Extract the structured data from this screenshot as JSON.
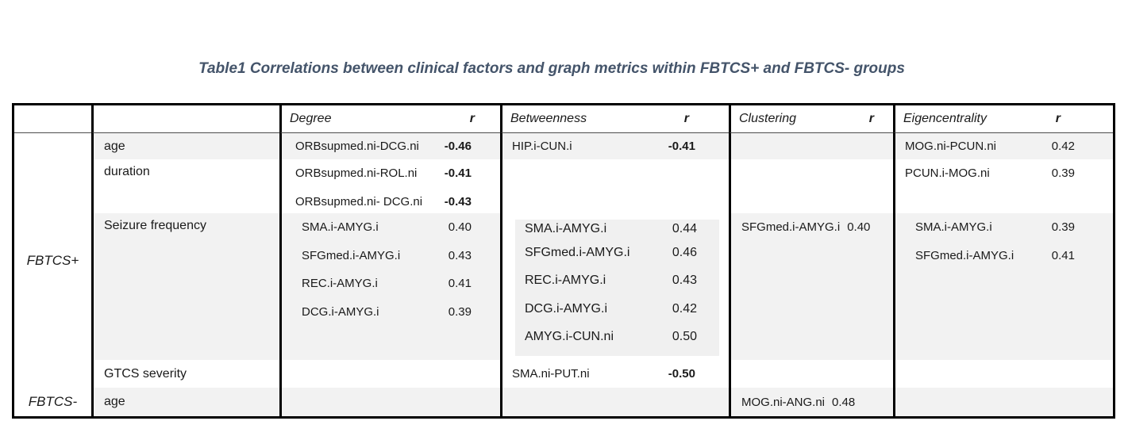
{
  "title": "Table1 Correlations between clinical factors and graph metrics within FBTCS+ and FBTCS- groups",
  "colors": {
    "title_accent": "#44546A",
    "row_shading": "#f2f2f2",
    "border": "#000000"
  },
  "header": {
    "metrics": [
      {
        "label": "Degree",
        "r": "r"
      },
      {
        "label": "Betweenness",
        "r": "r"
      },
      {
        "label": "Clustering",
        "r": "r"
      },
      {
        "label": "Eigencentrality",
        "r": "r"
      }
    ]
  },
  "groups": [
    {
      "label": "FBTCS+"
    },
    {
      "label": "FBTCS-"
    }
  ],
  "rows": [
    {
      "group": "FBTCS+",
      "factor": "age",
      "degree": [
        {
          "pair": "ORBsupmed.ni-DCG.ni",
          "r": "-0.46"
        }
      ],
      "betweenness": [
        {
          "pair": "HIP.i-CUN.i",
          "r": "-0.41"
        }
      ],
      "clustering": [],
      "eigencentrality": [
        {
          "pair": "MOG.ni-PCUN.ni",
          "r": "0.42"
        }
      ]
    },
    {
      "group": "FBTCS+",
      "factor": "duration",
      "degree": [
        {
          "pair": "ORBsupmed.ni-ROL.ni",
          "r": "-0.41"
        },
        {
          "pair": "ORBsupmed.ni- DCG.ni",
          "r": "-0.43"
        }
      ],
      "betweenness": [],
      "clustering": [],
      "eigencentrality": [
        {
          "pair": "PCUN.i-MOG.ni",
          "r": "0.39"
        }
      ]
    },
    {
      "group": "FBTCS+",
      "factor": "Seizure frequency",
      "degree": [
        {
          "pair": "SMA.i-AMYG.i",
          "r": "0.40"
        },
        {
          "pair": "SFGmed.i-AMYG.i",
          "r": "0.43"
        },
        {
          "pair": "REC.i-AMYG.i",
          "r": "0.41"
        },
        {
          "pair": "DCG.i-AMYG.i",
          "r": "0.39"
        }
      ],
      "betweenness": [
        {
          "pair": "SMA.i-AMYG.i",
          "r": "0.44"
        },
        {
          "pair": "SFGmed.i-AMYG.i",
          "r": "0.46"
        },
        {
          "pair": "REC.i-AMYG.i",
          "r": "0.43"
        },
        {
          "pair": "DCG.i-AMYG.i",
          "r": "0.42"
        },
        {
          "pair": "AMYG.i-CUN.ni",
          "r": "0.50"
        }
      ],
      "clustering": [
        {
          "pair": "SFGmed.i-AMYG.i",
          "r": "0.40"
        }
      ],
      "eigencentrality": [
        {
          "pair": "SMA.i-AMYG.i",
          "r": "0.39"
        },
        {
          "pair": "SFGmed.i-AMYG.i",
          "r": "0.41"
        }
      ]
    },
    {
      "group": "FBTCS+",
      "factor": "GTCS severity",
      "degree": [],
      "betweenness": [
        {
          "pair": "SMA.ni-PUT.ni",
          "r": "-0.50"
        }
      ],
      "clustering": [],
      "eigencentrality": []
    },
    {
      "group": "FBTCS-",
      "factor": "age",
      "degree": [],
      "betweenness": [],
      "clustering": [
        {
          "pair": "MOG.ni-ANG.ni",
          "r": "0.48"
        }
      ],
      "eigencentrality": []
    }
  ]
}
